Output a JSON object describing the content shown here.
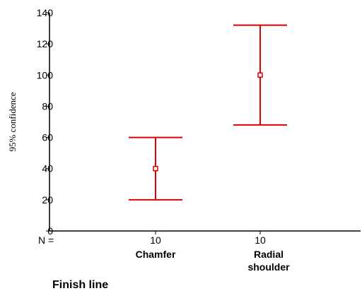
{
  "chart_data": {
    "type": "errorbar",
    "ylabel": "95% confidence",
    "xlabel": "Finish line",
    "ylim": [
      0,
      140
    ],
    "yticks": [
      0,
      20,
      40,
      60,
      80,
      100,
      120,
      140
    ],
    "n_prefix": "N =",
    "color": "#e00000",
    "groups": [
      {
        "label_lines": [
          "Chamfer"
        ],
        "n": "10",
        "mean": 40,
        "lower": 20,
        "upper": 60
      },
      {
        "label_lines": [
          "Radial",
          "shoulder"
        ],
        "n": "10",
        "mean": 100,
        "lower": 68,
        "upper": 132
      }
    ]
  }
}
